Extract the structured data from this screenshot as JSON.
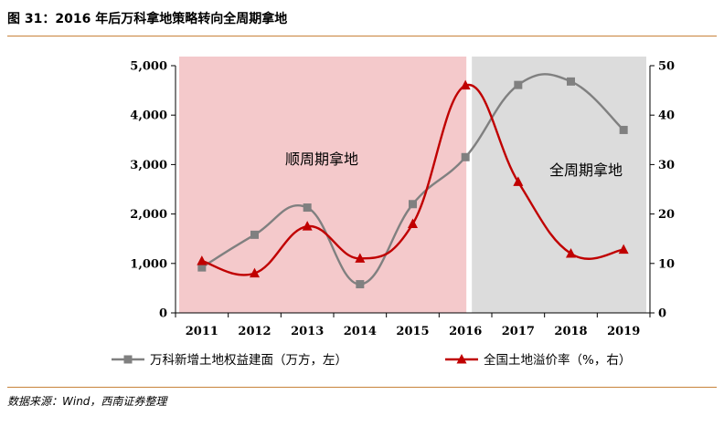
{
  "figure": {
    "title": "图 31：2016 年后万科拿地策略转向全周期拿地",
    "source": "数据来源：Wind，西南证券整理"
  },
  "chart_data": {
    "type": "line",
    "categories": [
      "2011",
      "2012",
      "2013",
      "2014",
      "2015",
      "2016",
      "2017",
      "2018",
      "2019"
    ],
    "y_left": {
      "ylim": [
        0,
        5000
      ],
      "ticks": [
        0,
        1000,
        2000,
        3000,
        4000,
        5000
      ],
      "tick_labels": [
        "0",
        "1,000",
        "2,000",
        "3,000",
        "4,000",
        "5,000"
      ]
    },
    "y_right": {
      "ylim": [
        0,
        50
      ],
      "ticks": [
        0,
        10,
        20,
        30,
        40,
        50
      ],
      "tick_labels": [
        "0",
        "10",
        "20",
        "30",
        "40",
        "50"
      ]
    },
    "series": [
      {
        "name": "万科新增土地权益建面（万方，左）",
        "axis": "left",
        "color": "#808080",
        "marker": "square",
        "values": [
          920,
          1580,
          2130,
          580,
          2200,
          3150,
          4610,
          4680,
          3700
        ]
      },
      {
        "name": "全国土地溢价率（%，右）",
        "axis": "right",
        "color": "#c00000",
        "marker": "triangle",
        "values": [
          10.5,
          8.0,
          17.5,
          11.0,
          18.0,
          46.0,
          26.5,
          12.0,
          12.8
        ]
      }
    ],
    "regions": [
      {
        "label": "顺周期拿地",
        "from": "2011",
        "to": "2016",
        "color": "#f4c9cb"
      },
      {
        "label": "全周期拿地",
        "from": "2016",
        "to": "2019",
        "color": "#dcdcdc"
      }
    ],
    "legend": "bottom",
    "grid": false
  }
}
